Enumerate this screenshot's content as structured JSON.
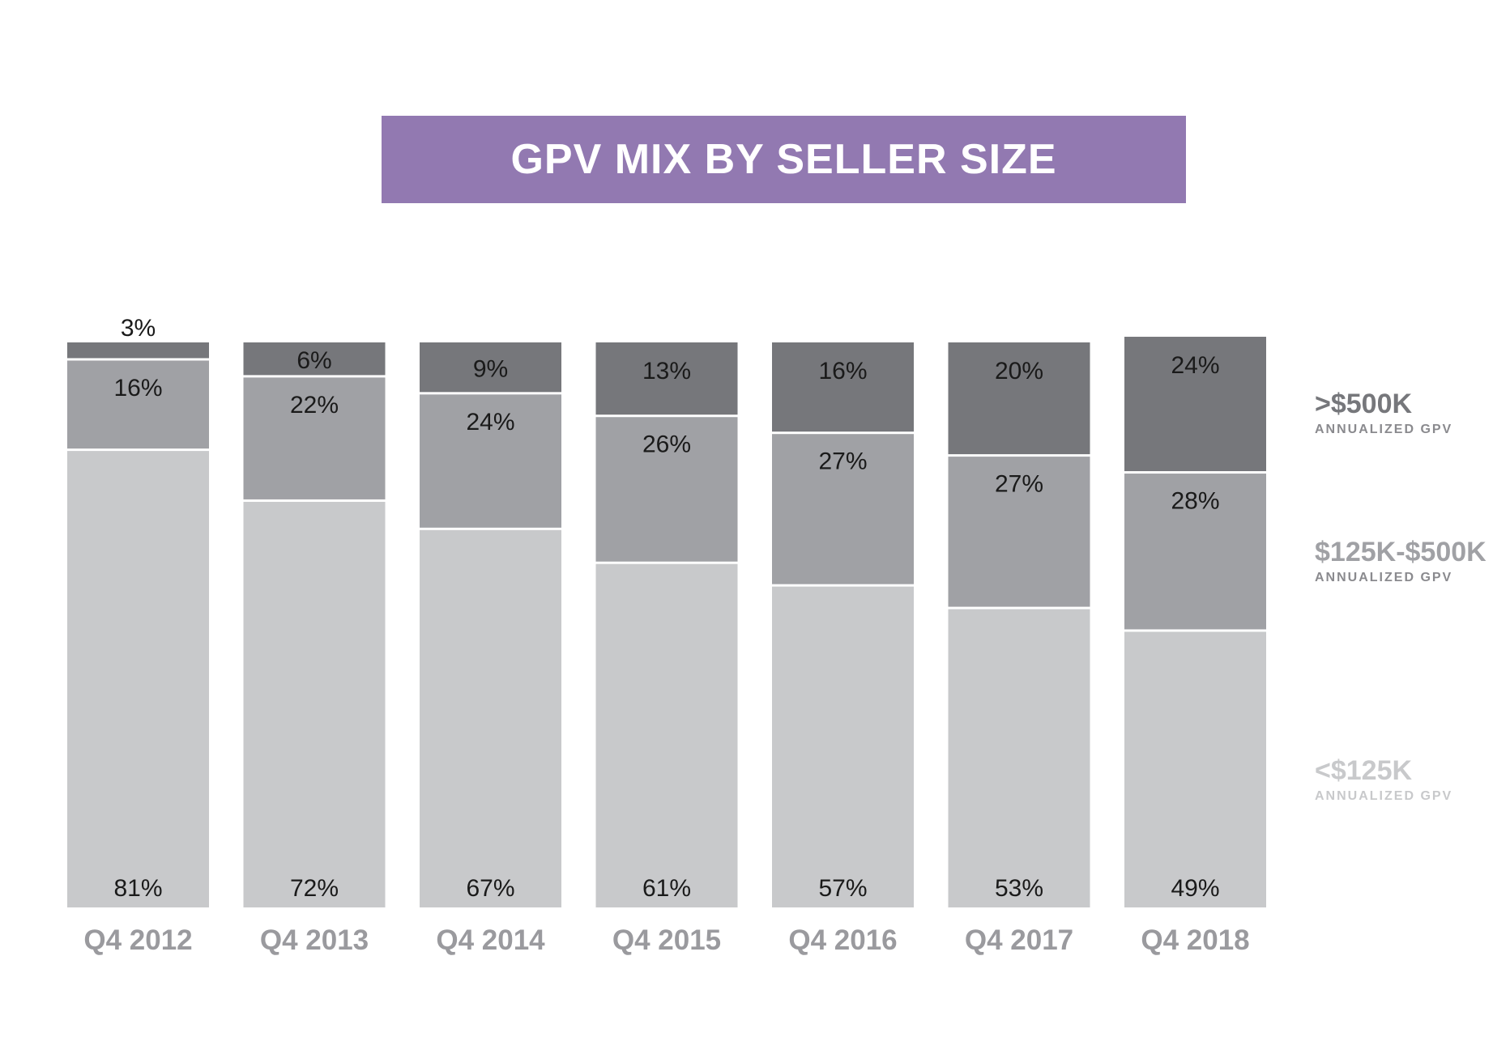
{
  "colors": {
    "title_bg": "#9279b1",
    "large": "#76777b",
    "mid": "#a0a1a5",
    "small": "#c8c9cb",
    "axis_text": "#9a9a9e",
    "value_text": "#1a1a1a"
  },
  "chart_data": {
    "type": "bar",
    "stacked": true,
    "title": "GPV MIX BY SELLER SIZE",
    "categories": [
      "Q4 2012",
      "Q4 2013",
      "Q4 2014",
      "Q4 2015",
      "Q4 2016",
      "Q4 2017",
      "Q4 2018"
    ],
    "series": [
      {
        "name": "<$125K",
        "sub": "ANNUALIZED GPV",
        "values": [
          81,
          72,
          67,
          61,
          57,
          53,
          49
        ],
        "labels": [
          "81%",
          "72%",
          "67%",
          "61%",
          "57%",
          "53%",
          "49%"
        ]
      },
      {
        "name": "$125K-$500K",
        "sub": "ANNUALIZED GPV",
        "values": [
          16,
          22,
          24,
          26,
          27,
          27,
          28
        ],
        "labels": [
          "16%",
          "22%",
          "24%",
          "26%",
          "27%",
          "27%",
          "28%"
        ]
      },
      {
        "name": ">$500K",
        "sub": "ANNUALIZED GPV",
        "values": [
          3,
          6,
          9,
          13,
          16,
          20,
          24
        ],
        "labels": [
          "3%",
          "6%",
          "9%",
          "13%",
          "16%",
          "20%",
          "24%"
        ]
      }
    ],
    "ylim": [
      0,
      100
    ],
    "xlabel": "",
    "ylabel": "",
    "grid": false,
    "legend_position": "right"
  }
}
